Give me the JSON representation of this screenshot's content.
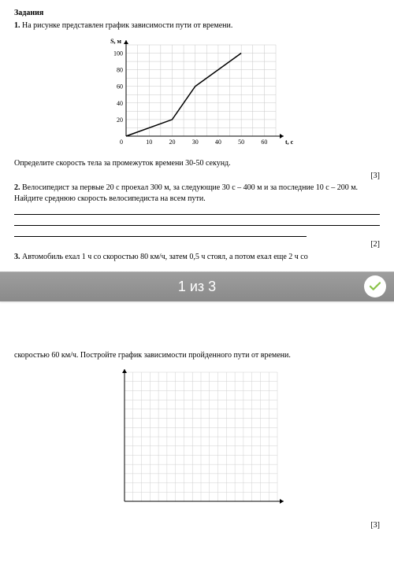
{
  "header": "Задания",
  "task1": {
    "num": "1.",
    "text": " На рисунке представлен график зависимости пути от времени.",
    "sub": "Определите скорость тела за промежуток времени 30-50 секунд.",
    "score": "[3]"
  },
  "chart1": {
    "type": "line",
    "y_label": "S, м",
    "y_ticks": [
      20,
      40,
      60,
      80,
      100
    ],
    "x_label": "t, с",
    "x_ticks": [
      10,
      20,
      30,
      40,
      50,
      60
    ],
    "xlim": [
      0,
      65
    ],
    "ylim": [
      0,
      110
    ],
    "points": [
      [
        0,
        0
      ],
      [
        20,
        20
      ],
      [
        30,
        60
      ],
      [
        50,
        100
      ]
    ],
    "axis_color": "#000000",
    "grid_color": "#c8c8c8",
    "line_color": "#000000",
    "line_width": 1.5,
    "bg": "#ffffff",
    "font_size": 8
  },
  "task2": {
    "num": "2.",
    "text": " Велосипедист за первые 20 с проехал 300 м, за следующие 30 с – 400 м и за последние 10 с – 200 м. Найдите среднюю скорость велосипедиста на всем пути.",
    "score": "[2]"
  },
  "task3": {
    "num": "3.",
    "text_top": " Автомобиль ехал 1 ч со скоростью 80 км/ч, затем 0,5 ч стоял, а потом ехал еще 2 ч со",
    "text_bottom": "скоростью 60 км/ч. Постройте график зависимости пройденного пути от времени.",
    "score": "[3]"
  },
  "chart2": {
    "type": "blank-grid",
    "grid_color": "#d0d0d0",
    "axis_color": "#000000",
    "bg": "#ffffff",
    "cols": 18,
    "rows": 14
  },
  "pager": {
    "label": "1 из 3",
    "check_color": "#8bc34a",
    "bar_from": "#9e9e9e",
    "bar_to": "#8a8a8a"
  }
}
